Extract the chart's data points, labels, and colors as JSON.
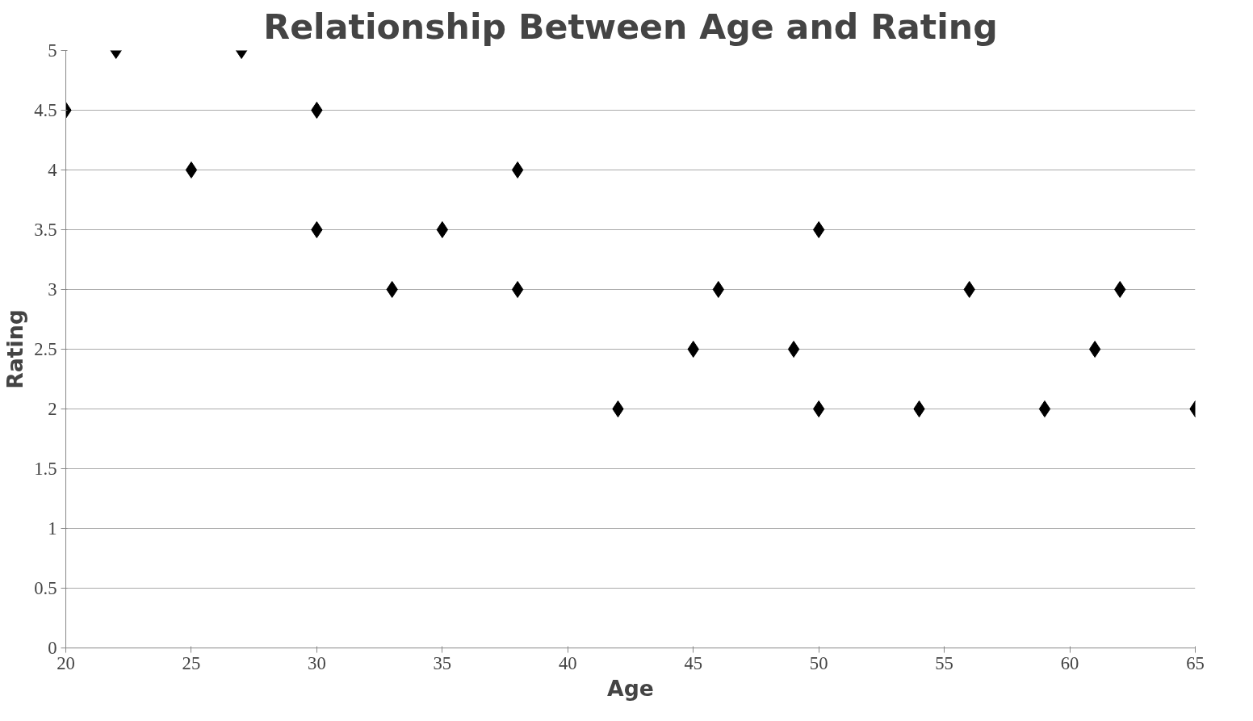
{
  "chart_data": {
    "type": "scatter",
    "title": "Relationship Between Age and Rating",
    "xlabel": "Age",
    "ylabel": "Rating",
    "x": [
      20,
      22,
      27,
      25,
      30,
      30,
      33,
      35,
      38,
      38,
      42,
      45,
      46,
      49,
      50,
      50,
      54,
      56,
      59,
      61,
      62,
      65
    ],
    "values": [
      4.5,
      5,
      5,
      4,
      4.5,
      3.5,
      3,
      3.5,
      4,
      3,
      2,
      2.5,
      3,
      2.5,
      3.5,
      2,
      2,
      3,
      2,
      2.5,
      3,
      2
    ],
    "color": "#000000",
    "marker": "diamond",
    "grid": "y",
    "legend": false,
    "xlim": [
      20,
      65
    ],
    "xticks": [
      20,
      25,
      30,
      35,
      40,
      45,
      50,
      55,
      60,
      65
    ],
    "ylim": [
      0,
      5
    ],
    "yticks": [
      0,
      0.5,
      1,
      1.5,
      2,
      2.5,
      3,
      3.5,
      4,
      4.5,
      5
    ]
  }
}
